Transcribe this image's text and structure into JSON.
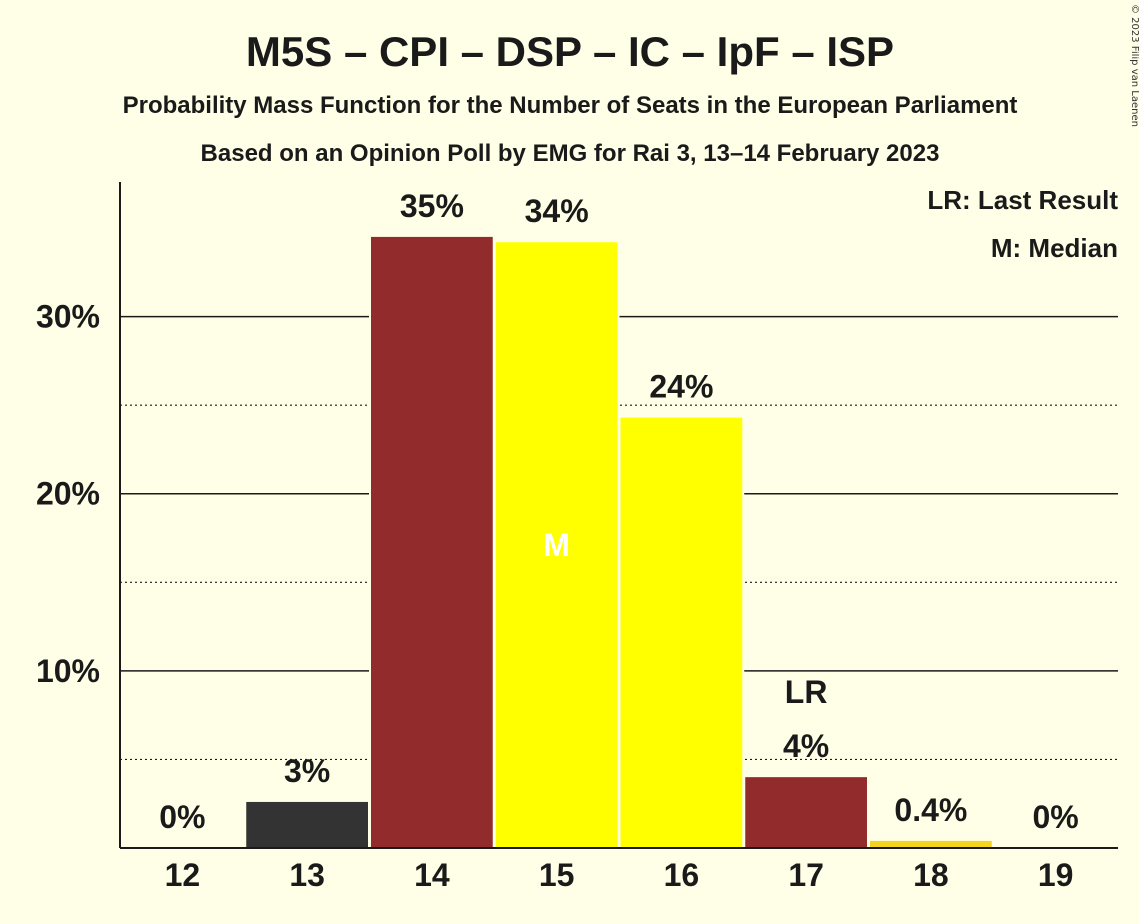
{
  "chart_data": {
    "type": "bar",
    "title": "M5S – CPI – DSP – IC – IpF – ISP",
    "subtitle": "Probability Mass Function for the Number of Seats in the European Parliament",
    "subtitle2": "Based on an Opinion Poll by EMG for Rai 3, 13–14 February 2023",
    "copyright": "© 2023 Filip van Laenen",
    "categories": [
      "12",
      "13",
      "14",
      "15",
      "16",
      "17",
      "18",
      "19"
    ],
    "values": [
      0,
      2.6,
      34.5,
      34.2,
      24.3,
      4.0,
      0.4,
      0
    ],
    "value_labels": [
      "0%",
      "3%",
      "35%",
      "34%",
      "24%",
      "4%",
      "0.4%",
      "0%"
    ],
    "bar_colors": [
      "#333333",
      "#333333",
      "#922B2B",
      "#FFFF00",
      "#FFFF00",
      "#922B2B",
      "#F5D41F",
      "#333333"
    ],
    "ylim": [
      0,
      37.6
    ],
    "y_ticks": [
      10,
      20,
      30
    ],
    "y_tick_labels": [
      "10%",
      "20%",
      "30%"
    ],
    "y_minor_ticks": [
      5,
      15,
      25
    ],
    "median_index": 3,
    "median_marker": "M",
    "last_result_index": 5,
    "last_result_marker": "LR",
    "legend": [
      "LR: Last Result",
      "M: Median"
    ],
    "legend_position": "top-right",
    "grid": true
  }
}
